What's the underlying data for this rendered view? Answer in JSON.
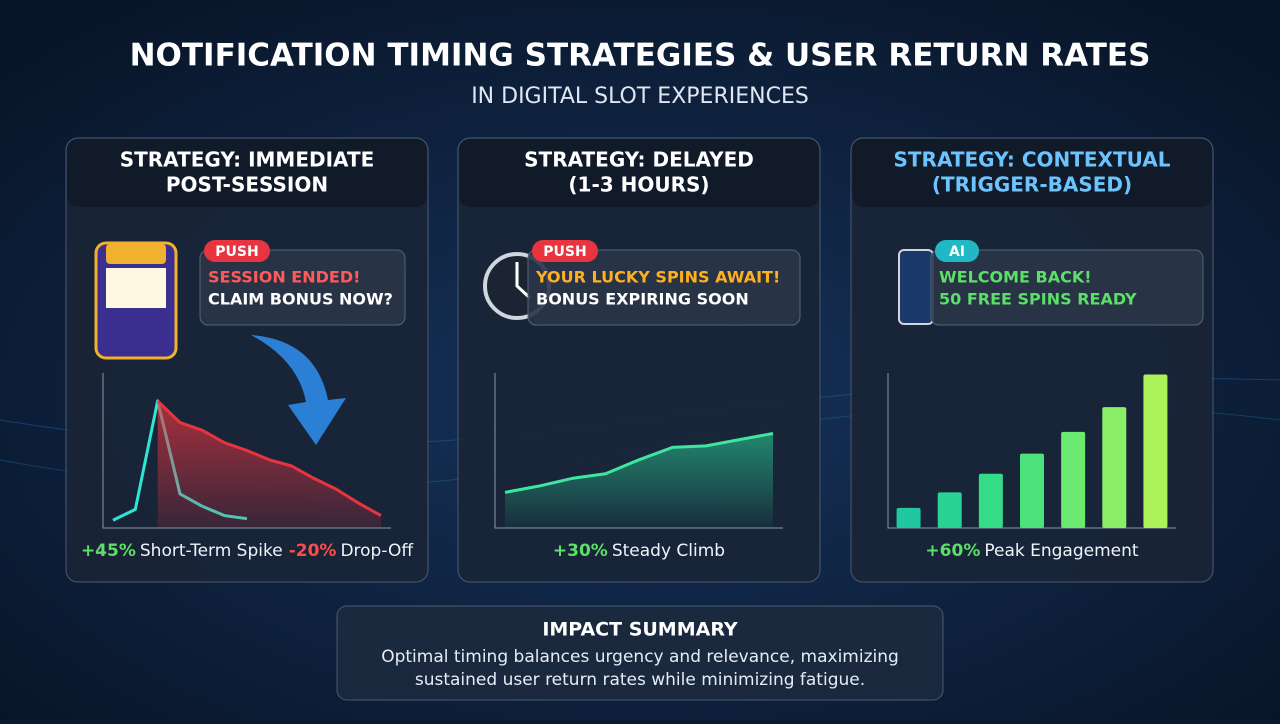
{
  "header": {
    "title": "NOTIFICATION TIMING STRATEGIES & USER RETURN RATES",
    "subtitle": "IN DIGITAL SLOT EXPERIENCES"
  },
  "panels": [
    {
      "title": [
        "STRATEGY: IMMEDIATE",
        "POST-SESSION"
      ],
      "title_color": "#ffffff",
      "badge": "PUSH",
      "badge_color": "#e8343f",
      "message": [
        "SESSION ENDED!",
        "CLAIM BONUS NOW?"
      ],
      "message_colors": [
        "#ff5a5a",
        "#ffffff"
      ],
      "chart": {
        "type": "line",
        "ylim": [
          0,
          100
        ],
        "series": [
          {
            "color": "#2ee6d6",
            "values": [
              5,
              12,
              82,
              22,
              14,
              8,
              6,
              null,
              null,
              null,
              null,
              null,
              null
            ]
          },
          {
            "color": "#e8343f",
            "area": true,
            "values": [
              null,
              null,
              82,
              68,
              63,
              55,
              50,
              44,
              40,
              32,
              25,
              16,
              8
            ]
          }
        ]
      },
      "stats": [
        {
          "value": "+45%",
          "label": "Short-Term Spike",
          "color": "#5dde6a"
        },
        {
          "value": "-20%",
          "label": "Drop-Off",
          "color": "#ff4b4b"
        }
      ]
    },
    {
      "title": [
        "STRATEGY: DELAYED",
        "(1-3 HOURS)"
      ],
      "title_color": "#ffffff",
      "badge": "PUSH",
      "badge_color": "#e8343f",
      "message": [
        "YOUR LUCKY SPINS AWAIT!",
        "BONUS EXPIRING SOON"
      ],
      "message_colors": [
        "#ffb020",
        "#ffffff"
      ],
      "chart": {
        "type": "line",
        "ylim": [
          0,
          100
        ],
        "series": [
          {
            "color": "#3ee6a0",
            "area": true,
            "values": [
              23,
              27,
              32,
              35,
              44,
              52,
              53,
              57,
              61
            ]
          }
        ]
      },
      "stats": [
        {
          "value": "+30%",
          "label": "Steady Climb",
          "color": "#5dde6a"
        }
      ]
    },
    {
      "title": [
        "STRATEGY: CONTEXTUAL",
        "(TRIGGER-BASED)"
      ],
      "title_color": "#6cc4ff",
      "badge": "AI",
      "badge_color": "#1fb8c4",
      "message": [
        "WELCOME BACK!",
        "50 FREE SPINS READY"
      ],
      "message_colors": [
        "#5dde6a",
        "#5dde6a"
      ],
      "chart": {
        "type": "bar",
        "ylim": [
          0,
          100
        ],
        "values": [
          13,
          23,
          35,
          48,
          62,
          78,
          99
        ],
        "colors": [
          "#1fc8a0",
          "#28d494",
          "#35dc88",
          "#4ee27c",
          "#6ae870",
          "#8aee66",
          "#aef25a"
        ]
      },
      "stats": [
        {
          "value": "+60%",
          "label": "Peak Engagement",
          "color": "#5dde6a"
        }
      ]
    }
  ],
  "summary": {
    "title": "IMPACT SUMMARY",
    "text": [
      "Optimal timing balances urgency and relevance, maximizing",
      "sustained user return rates while minimizing fatigue."
    ]
  }
}
